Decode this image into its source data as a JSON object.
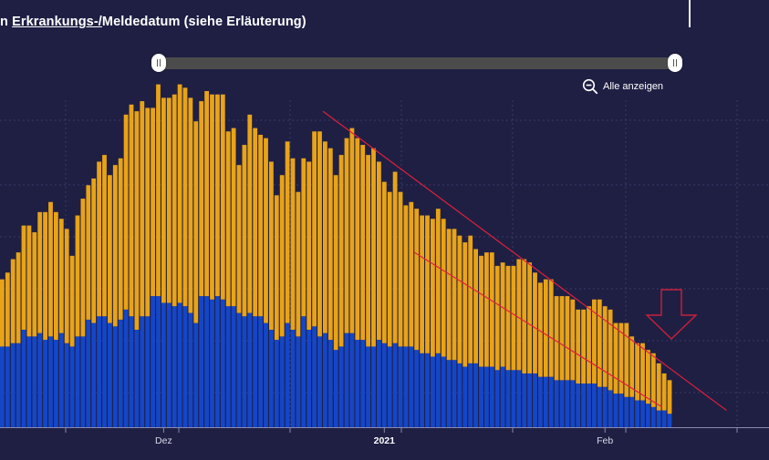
{
  "header": {
    "title_prefix": "n ",
    "title_link": "Erkrankungs-/",
    "title_suffix": "Meldedatum (siehe Erläuterung)"
  },
  "range_slider": {
    "start": 0.0,
    "end": 1.0
  },
  "zoom_button": {
    "icon": "zoom-out-icon",
    "label": "Alle anzeigen"
  },
  "colors": {
    "background": "#1f1f44",
    "bottom_series": "#1446c8",
    "top_series": "#e8a317",
    "trend_lines": "#e0203c",
    "arrow": "#c8203c",
    "grid": "#3a3a66"
  },
  "chart_data": {
    "type": "bar",
    "stacked": true,
    "x_tick_labels": [
      {
        "label": "Dez",
        "bar_index": 30,
        "bold": false
      },
      {
        "label": "2021",
        "bar_index": 71,
        "bold": true
      },
      {
        "label": "Feb",
        "bar_index": 112,
        "bold": false
      }
    ],
    "ylim": [
      0,
      100
    ],
    "grid": true,
    "series": [
      {
        "values": [
          24,
          24,
          25,
          25,
          29,
          27,
          27,
          28,
          26,
          27,
          26,
          28,
          25,
          24,
          27,
          27,
          32,
          31,
          33,
          33,
          31,
          30,
          32,
          35,
          33,
          29,
          33,
          33,
          39,
          39,
          37,
          37,
          36,
          37,
          36,
          34,
          31,
          39,
          39,
          38,
          39,
          38,
          36,
          36,
          34,
          33,
          34,
          33,
          33,
          31,
          29,
          26,
          27,
          31,
          29,
          27,
          33,
          29,
          30,
          27,
          28,
          26,
          23,
          24,
          28,
          28,
          26,
          26,
          24,
          24,
          26,
          25,
          24,
          25,
          24,
          24,
          24,
          23,
          22,
          22,
          21,
          22,
          21,
          20,
          20,
          19,
          18,
          19,
          19,
          18,
          18,
          18,
          17,
          18,
          17,
          17,
          17,
          16,
          16,
          16,
          15,
          15,
          15,
          14,
          14,
          14,
          14,
          13,
          13,
          13,
          13,
          12,
          12,
          11,
          10,
          10,
          9,
          9,
          8,
          8,
          7,
          6,
          5,
          5,
          4
        ]
      },
      {
        "values": [
          20,
          22,
          25,
          27,
          31,
          33,
          31,
          36,
          38,
          40,
          38,
          34,
          34,
          27,
          36,
          41,
          40,
          43,
          46,
          48,
          44,
          48,
          48,
          58,
          63,
          65,
          64,
          62,
          56,
          63,
          61,
          61,
          63,
          65,
          65,
          64,
          60,
          58,
          61,
          61,
          60,
          61,
          52,
          53,
          44,
          51,
          59,
          56,
          54,
          55,
          50,
          43,
          48,
          54,
          51,
          43,
          47,
          50,
          58,
          61,
          57,
          57,
          52,
          57,
          58,
          61,
          60,
          58,
          57,
          59,
          53,
          48,
          46,
          51,
          46,
          42,
          43,
          42,
          41,
          41,
          41,
          43,
          41,
          39,
          39,
          38,
          37,
          38,
          34,
          33,
          34,
          34,
          31,
          31,
          31,
          31,
          33,
          34,
          33,
          30,
          28,
          29,
          29,
          25,
          25,
          25,
          24,
          22,
          22,
          23,
          25,
          26,
          24,
          24,
          21,
          21,
          22,
          18,
          17,
          17,
          16,
          16,
          14,
          11,
          10
        ]
      }
    ],
    "trend_lines": [
      {
        "from_bar": 60,
        "from_value": 94,
        "to_bar": 135,
        "to_value": 5
      },
      {
        "from_bar": 77,
        "from_value": 52,
        "to_bar": 123,
        "to_value": 6
      }
    ]
  }
}
